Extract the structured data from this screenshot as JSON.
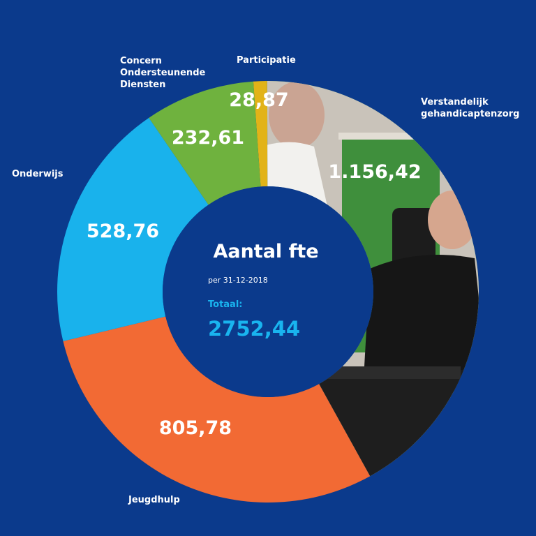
{
  "background_color": "#0b3a8c",
  "center": {
    "title": "Aantal fte",
    "subtitle": "per 31-12-2018",
    "total_label": "Totaal:",
    "total_value": "2752,44",
    "color": "#0b3a8c",
    "accent": "#19b4ef"
  },
  "chart_data": {
    "type": "pie",
    "title": "Aantal fte",
    "subtitle": "per 31-12-2018",
    "total": 2752.44,
    "slices": [
      {
        "category": "Participatie",
        "value": 28.87,
        "display": "28,87",
        "color": "#e2b318"
      },
      {
        "category": "Verstandelijk gehandicaptenzorg",
        "category_lines": [
          "Verstandelijk",
          "gehandicaptenzorg"
        ],
        "value": 1156.42,
        "display": "1.156,42",
        "color": "#2c8a39",
        "photo": true
      },
      {
        "category": "Jeugdhulp",
        "value": 805.78,
        "display": "805,78",
        "color": "#f26a34"
      },
      {
        "category": "Onderwijs",
        "value": 528.76,
        "display": "528,76",
        "color": "#19b2ec"
      },
      {
        "category": "Concern Ondersteunende Diensten",
        "category_lines": [
          "Concern",
          "Ondersteunende",
          "Diensten"
        ],
        "value": 232.61,
        "display": "232,61",
        "color": "#6fb23e"
      }
    ]
  }
}
